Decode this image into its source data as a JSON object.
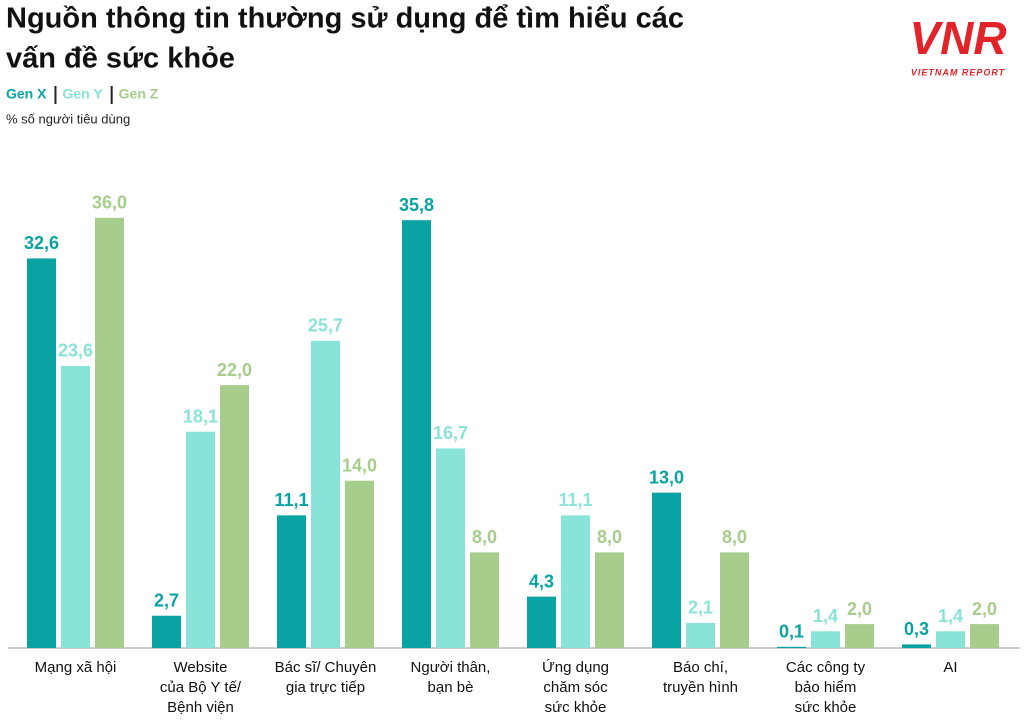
{
  "chart_data": {
    "type": "bar",
    "title": [
      "Nguồn thông tin thường sử dụng để tìm hiểu các",
      "vấn đề sức khỏe"
    ],
    "subtitle": "% số người tiêu dùng",
    "logo": {
      "mark": "VNR",
      "name": "VIETNAM REPORT"
    },
    "categories": [
      [
        "Mạng xã hội"
      ],
      [
        "Website",
        "của Bộ Y tế/",
        "Bệnh viện"
      ],
      [
        "Bác sĩ/ Chuyên",
        "gia trực tiếp"
      ],
      [
        "Người thân,",
        "bạn bè"
      ],
      [
        "Ứng dụng",
        "chăm sóc",
        "sức khỏe"
      ],
      [
        "Báo chí,",
        "truyền hình"
      ],
      [
        "Các công ty",
        "bảo hiểm",
        "sức khỏe"
      ],
      [
        "AI"
      ]
    ],
    "series": [
      {
        "name": "Gen X",
        "color": "#0aa3a3",
        "values": [
          32.6,
          2.7,
          11.1,
          35.8,
          4.3,
          13.0,
          0.1,
          0.3
        ],
        "value_labels": [
          "32,6",
          "2,7",
          "11,1",
          "35,8",
          "4,3",
          "13,0",
          "0,1",
          "0,3"
        ]
      },
      {
        "name": "Gen Y",
        "color": "#8ae3d8",
        "values": [
          23.6,
          18.1,
          25.7,
          16.7,
          11.1,
          2.1,
          1.4,
          1.4
        ],
        "value_labels": [
          "23,6",
          "18,1",
          "25,7",
          "16,7",
          "11,1",
          "2,1",
          "1,4",
          "1,4"
        ]
      },
      {
        "name": "Gen Z",
        "color": "#a6cd8c",
        "values": [
          36.0,
          22.0,
          14.0,
          8.0,
          8.0,
          8.0,
          2.0,
          2.0
        ],
        "value_labels": [
          "36,0",
          "22,0",
          "14,0",
          "8,0",
          "8,0",
          "8,0",
          "2,0",
          "2,0"
        ]
      }
    ]
  }
}
